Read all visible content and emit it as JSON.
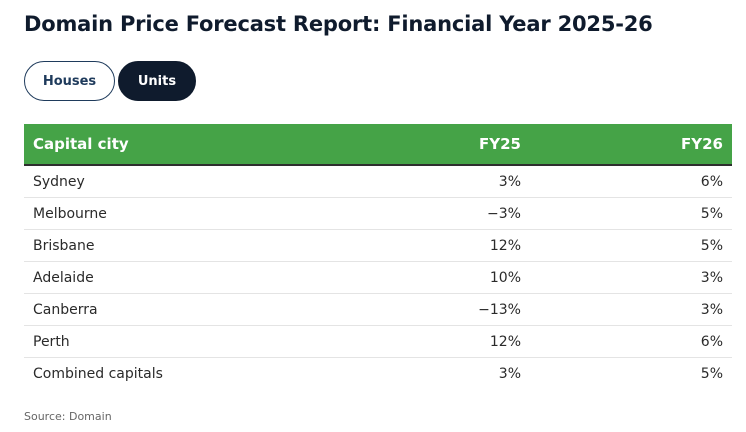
{
  "title": "Domain Price Forecast Report: Financial Year 2025-26",
  "toggles": {
    "houses": "Houses",
    "units": "Units",
    "selected": "Units"
  },
  "colors": {
    "header_bg": "#45a347",
    "toggle_active": "#0f1b2d",
    "title": "#0f1b2d"
  },
  "table": {
    "headers": [
      "Capital city",
      "FY25",
      "FY26"
    ],
    "rows": [
      [
        "Sydney",
        "3%",
        "6%"
      ],
      [
        "Melbourne",
        "−3%",
        "5%"
      ],
      [
        "Brisbane",
        "12%",
        "5%"
      ],
      [
        "Adelaide",
        "10%",
        "3%"
      ],
      [
        "Canberra",
        "−13%",
        "3%"
      ],
      [
        "Perth",
        "12%",
        "6%"
      ],
      [
        "Combined capitals",
        "3%",
        "5%"
      ]
    ]
  },
  "source": "Source: Domain"
}
